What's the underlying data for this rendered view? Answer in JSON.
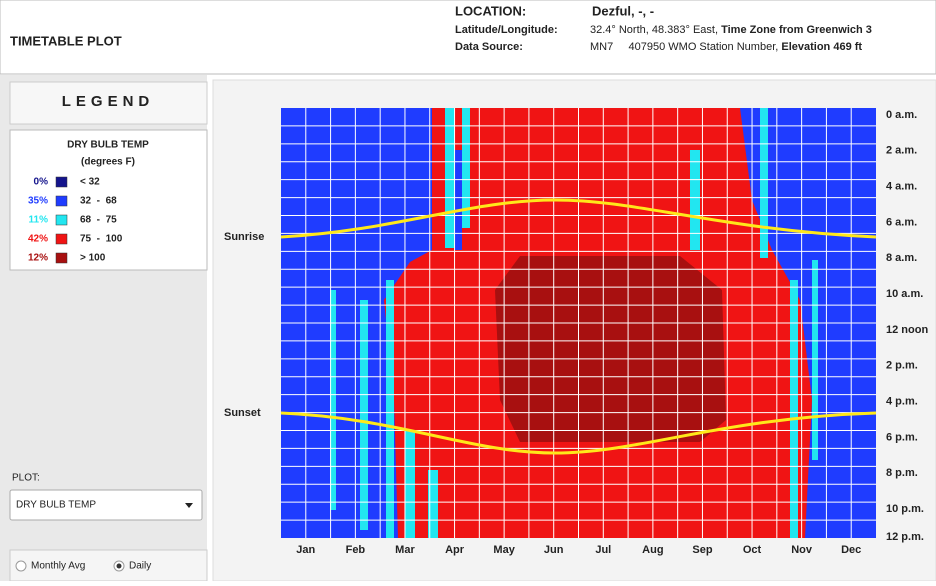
{
  "header": {
    "title": "TIMETABLE PLOT",
    "location_label": "LOCATION:",
    "location": "Dezful, -, -",
    "latlon_label": "Latitude/Longitude:",
    "latlon": "32.4° North, 48.383° East,",
    "timezone": "Time Zone from Greenwich 3",
    "source_label": "Data Source:",
    "source": "MN7     407950 WMO Station Number,",
    "elevation": "Elevation 469 ft"
  },
  "legend": {
    "title": "LEGEND",
    "variable": "DRY BULB TEMP",
    "units": "(degrees F)",
    "items": [
      {
        "percent": "0%",
        "range": "< 32",
        "color": "#14148c"
      },
      {
        "percent": "35%",
        "range": "32  -  68",
        "color": "#1f3cff"
      },
      {
        "percent": "11%",
        "range": "68  -  75",
        "color": "#22e6f0"
      },
      {
        "percent": "42%",
        "range": "75  -  100",
        "color": "#f01414"
      },
      {
        "percent": "12%",
        "range": "> 100",
        "color": "#a81010"
      }
    ]
  },
  "controls": {
    "plot_label": "PLOT:",
    "plot_value": "DRY BULB TEMP",
    "radio_monthly": "Monthly Avg",
    "radio_daily": "Daily"
  },
  "chart": {
    "months": [
      "Jan",
      "Feb",
      "Mar",
      "Apr",
      "May",
      "Jun",
      "Jul",
      "Aug",
      "Sep",
      "Oct",
      "Nov",
      "Dec"
    ],
    "hours": [
      "0 a.m.",
      "2 a.m.",
      "4 a.m.",
      "6 a.m.",
      "8 a.m.",
      "10 a.m.",
      "12 noon",
      "2 p.m.",
      "4 p.m.",
      "6 p.m.",
      "8 p.m.",
      "10 p.m.",
      "12 p.m."
    ],
    "sunrise": "Sunrise",
    "sunset": "Sunset"
  }
}
